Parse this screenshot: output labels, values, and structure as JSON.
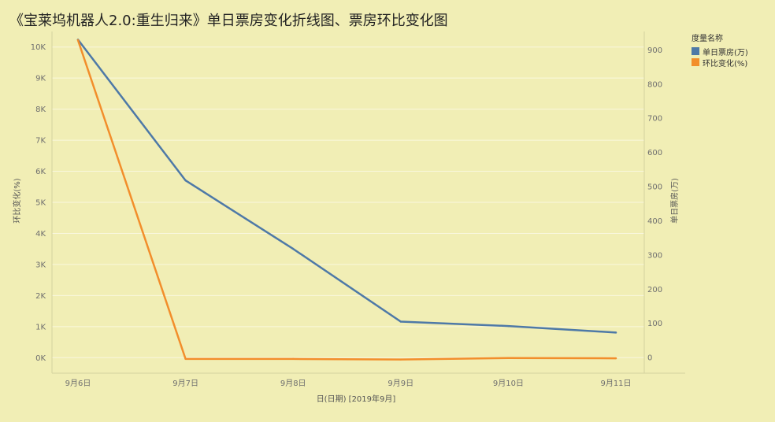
{
  "title": "《宝莱坞机器人2.0:重生归来》单日票房变化折线图、票房环比变化图",
  "legend": {
    "title": "度量名称"
  },
  "chart_data": {
    "type": "line",
    "categories": [
      "9月6日",
      "9月7日",
      "9月8日",
      "9月9日",
      "9月10日",
      "9月11日"
    ],
    "xlabel": "日(日期) [2019年9月]",
    "series": [
      {
        "name": "单日票房(万)",
        "color": "#4e79a7",
        "axis": "right",
        "values": [
          930,
          518,
          318,
          105,
          92,
          73
        ]
      },
      {
        "name": "环比变化(%)",
        "color": "#f28e2b",
        "axis": "left",
        "values": [
          10220,
          -40,
          -40,
          -60,
          -10,
          -20
        ]
      }
    ],
    "left_axis": {
      "label": "环比变化(%)",
      "ylim": [
        -500,
        10500
      ],
      "ticks": [
        0,
        1000,
        2000,
        3000,
        4000,
        5000,
        6000,
        7000,
        8000,
        9000,
        10000
      ],
      "tick_labels": [
        "0K",
        "1K",
        "2K",
        "3K",
        "4K",
        "5K",
        "6K",
        "7K",
        "8K",
        "9K",
        "10K"
      ]
    },
    "right_axis": {
      "label": "单日票房(万)",
      "ylim": [
        -45.9,
        954
      ],
      "ticks": [
        0,
        100,
        200,
        300,
        400,
        500,
        600,
        700,
        800,
        900
      ],
      "tick_labels": [
        "0",
        "100",
        "200",
        "300",
        "400",
        "500",
        "600",
        "700",
        "800",
        "900"
      ]
    },
    "grid": true,
    "legend_position": "right"
  }
}
